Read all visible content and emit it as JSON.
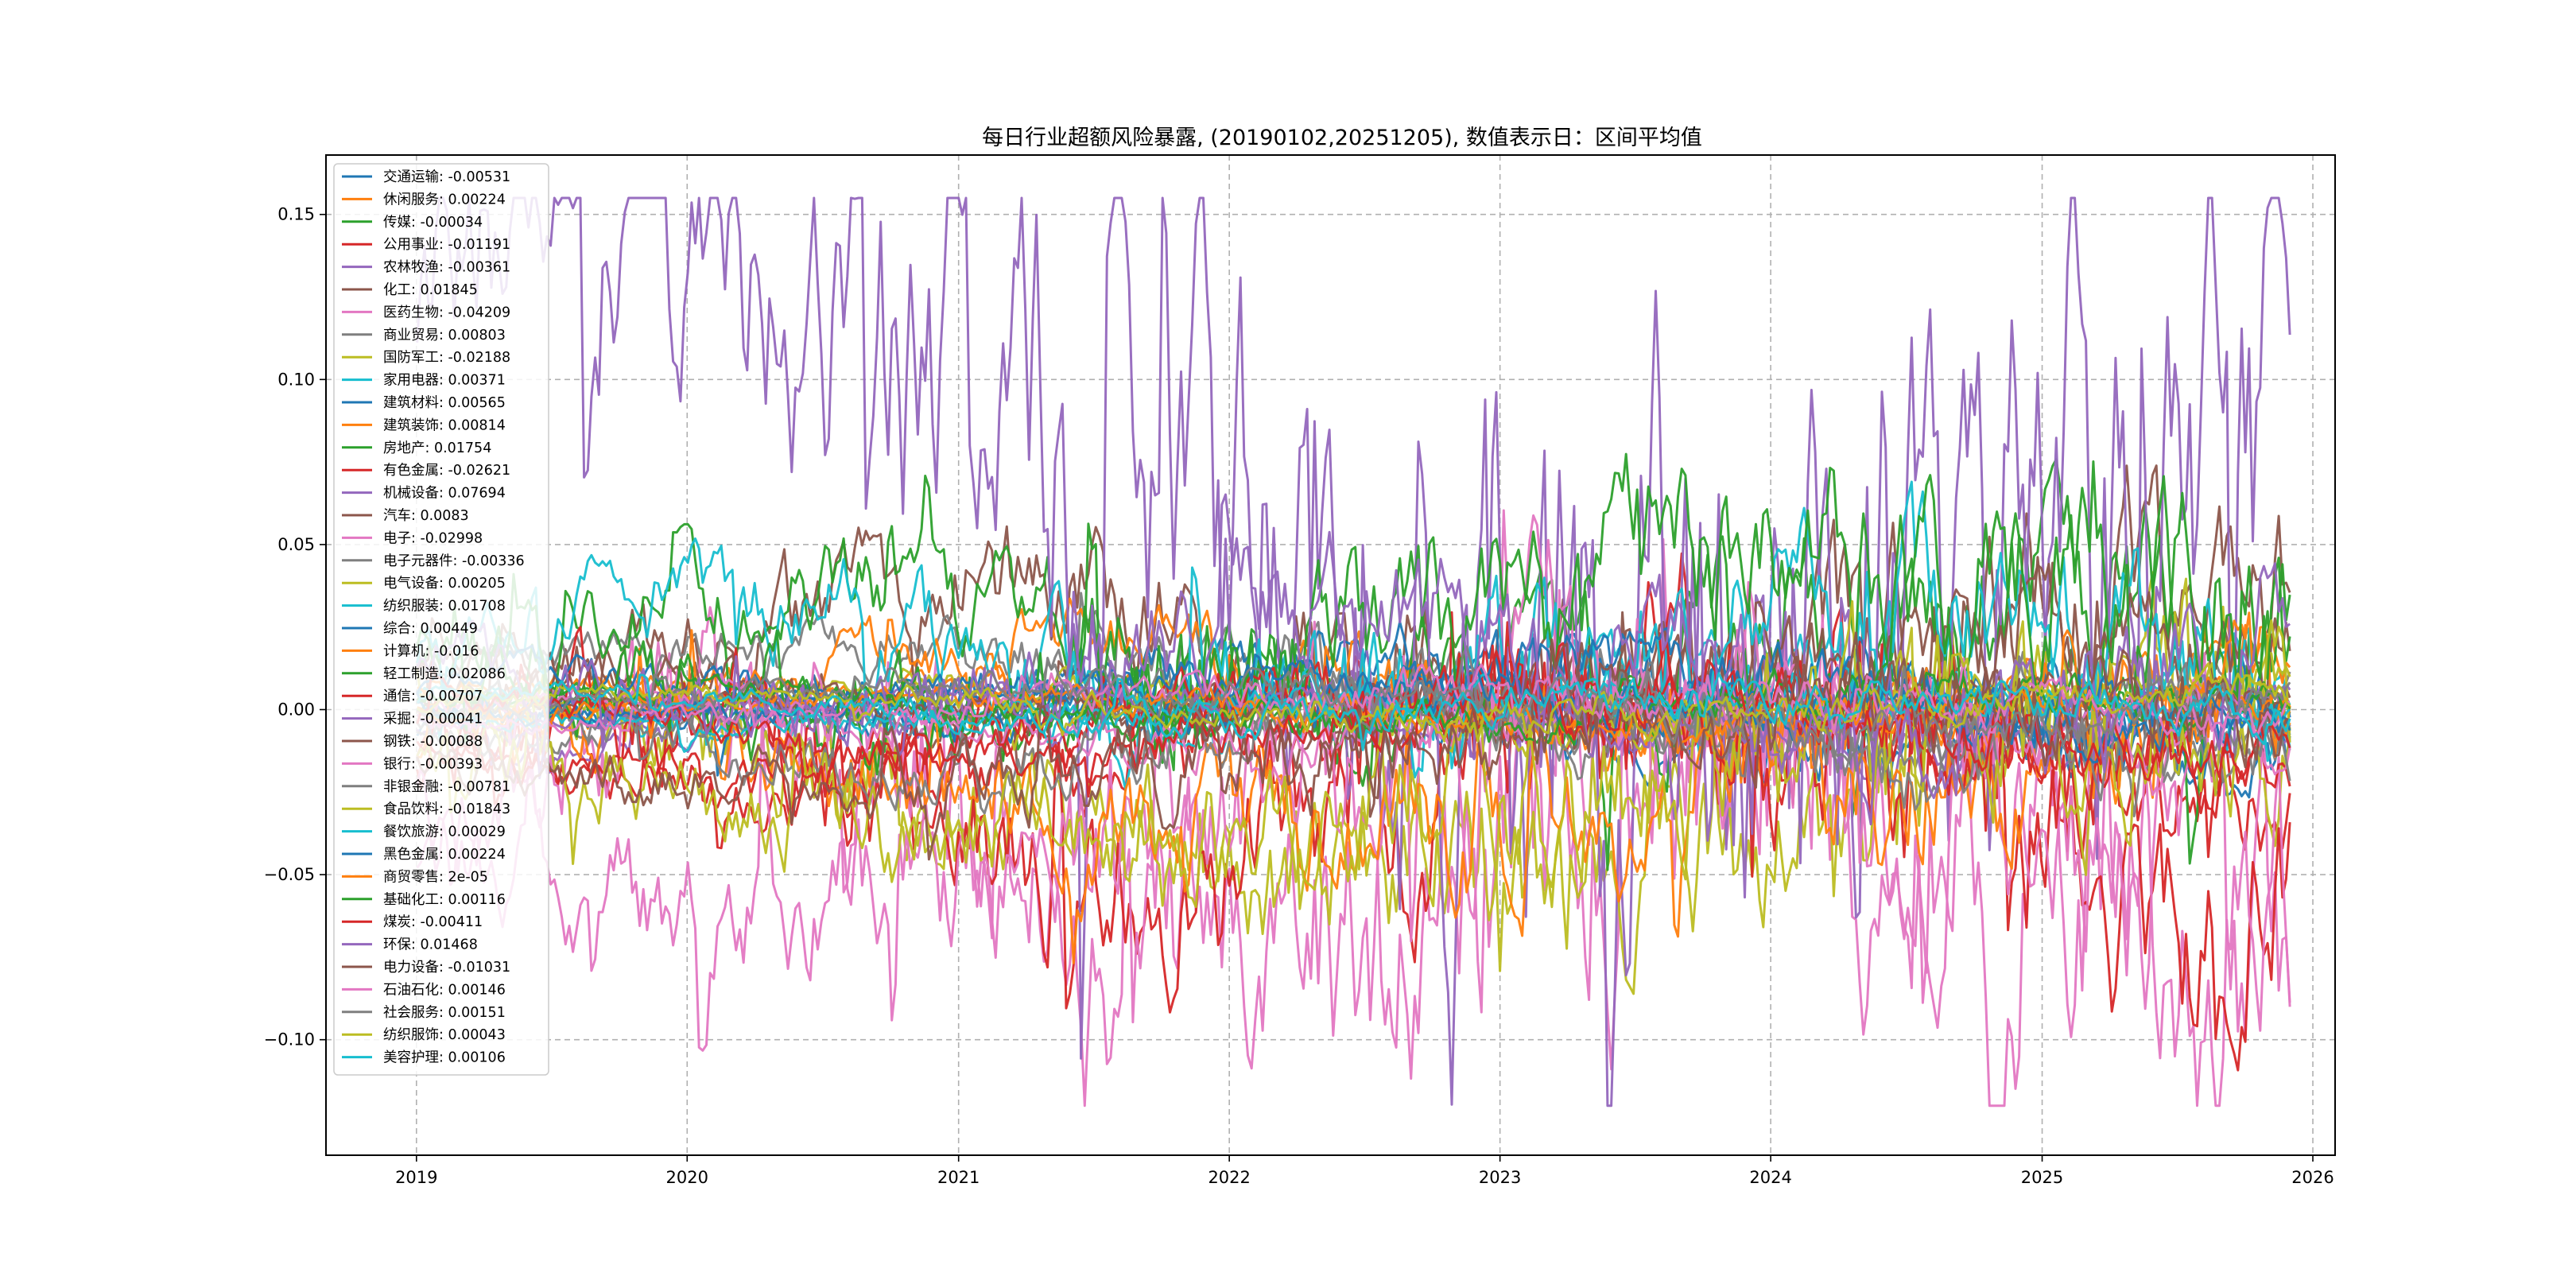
{
  "chart_data": {
    "type": "line",
    "title": "每日行业超额风险暴露, (20190102,20251205), 数值表示日：区间平均值",
    "xlabel": "",
    "ylabel": "",
    "x_start": "2019-01-02",
    "x_end": "2025-12-05",
    "xlim": [
      "2018-09-01",
      "2026-01-31"
    ],
    "ylim": [
      -0.135,
      0.168
    ],
    "x_ticks": [
      "2019",
      "2020",
      "2021",
      "2022",
      "2023",
      "2024",
      "2025",
      "2026"
    ],
    "y_ticks": [
      0.15,
      0.1,
      0.05,
      0.0,
      -0.05,
      -0.1
    ],
    "y_tick_labels": [
      "0.15",
      "0.10",
      "0.05",
      "0.00",
      "−0.05",
      "−0.10"
    ],
    "grid": true,
    "legend_position": "upper-left",
    "series": [
      {
        "name": "交通运输",
        "label": "交通运输: -0.00531",
        "mean": -0.00531,
        "color": "#1f77b4"
      },
      {
        "name": "休闲服务",
        "label": "休闲服务: 0.00224",
        "mean": 0.00224,
        "color": "#ff7f0e"
      },
      {
        "name": "传媒",
        "label": "传媒: -0.00034",
        "mean": -0.00034,
        "color": "#2ca02c"
      },
      {
        "name": "公用事业",
        "label": "公用事业: -0.01191",
        "mean": -0.01191,
        "color": "#d62728"
      },
      {
        "name": "农林牧渔",
        "label": "农林牧渔: -0.00361",
        "mean": -0.00361,
        "color": "#9467bd"
      },
      {
        "name": "化工",
        "label": "化工: 0.01845",
        "mean": 0.01845,
        "color": "#8c564b"
      },
      {
        "name": "医药生物",
        "label": "医药生物: -0.04209",
        "mean": -0.04209,
        "color": "#e377c2"
      },
      {
        "name": "商业贸易",
        "label": "商业贸易: 0.00803",
        "mean": 0.00803,
        "color": "#7f7f7f"
      },
      {
        "name": "国防军工",
        "label": "国防军工: -0.02188",
        "mean": -0.02188,
        "color": "#bcbd22"
      },
      {
        "name": "家用电器",
        "label": "家用电器: 0.00371",
        "mean": 0.00371,
        "color": "#17becf"
      },
      {
        "name": "建筑材料",
        "label": "建筑材料: 0.00565",
        "mean": 0.00565,
        "color": "#1f77b4"
      },
      {
        "name": "建筑装饰",
        "label": "建筑装饰: 0.00814",
        "mean": 0.00814,
        "color": "#ff7f0e"
      },
      {
        "name": "房地产",
        "label": "房地产: 0.01754",
        "mean": 0.01754,
        "color": "#2ca02c"
      },
      {
        "name": "有色金属",
        "label": "有色金属: -0.02621",
        "mean": -0.02621,
        "color": "#d62728"
      },
      {
        "name": "机械设备",
        "label": "机械设备: 0.07694",
        "mean": 0.07694,
        "color": "#9467bd"
      },
      {
        "name": "汽车",
        "label": "汽车: 0.0083",
        "mean": 0.0083,
        "color": "#8c564b"
      },
      {
        "name": "电子",
        "label": "电子: -0.02998",
        "mean": -0.02998,
        "color": "#e377c2"
      },
      {
        "name": "电子元器件",
        "label": "电子元器件: -0.00336",
        "mean": -0.00336,
        "color": "#7f7f7f"
      },
      {
        "name": "电气设备",
        "label": "电气设备: 0.00205",
        "mean": 0.00205,
        "color": "#bcbd22"
      },
      {
        "name": "纺织服装",
        "label": "纺织服装: 0.01708",
        "mean": 0.01708,
        "color": "#17becf"
      },
      {
        "name": "综合",
        "label": "综合: 0.00449",
        "mean": 0.00449,
        "color": "#1f77b4"
      },
      {
        "name": "计算机",
        "label": "计算机: -0.016",
        "mean": -0.016,
        "color": "#ff7f0e"
      },
      {
        "name": "轻工制造",
        "label": "轻工制造: 0.02086",
        "mean": 0.02086,
        "color": "#2ca02c"
      },
      {
        "name": "通信",
        "label": "通信: -0.00707",
        "mean": -0.00707,
        "color": "#d62728"
      },
      {
        "name": "采掘",
        "label": "采掘: -0.00041",
        "mean": -0.00041,
        "color": "#9467bd"
      },
      {
        "name": "钢铁",
        "label": "钢铁: -0.00088",
        "mean": -0.00088,
        "color": "#8c564b"
      },
      {
        "name": "银行",
        "label": "银行: -0.00393",
        "mean": -0.00393,
        "color": "#e377c2"
      },
      {
        "name": "非银金融",
        "label": "非银金融: -0.00781",
        "mean": -0.00781,
        "color": "#7f7f7f"
      },
      {
        "name": "食品饮料",
        "label": "食品饮料: -0.01843",
        "mean": -0.01843,
        "color": "#bcbd22"
      },
      {
        "name": "餐饮旅游",
        "label": "餐饮旅游: 0.00029",
        "mean": 0.00029,
        "color": "#17becf"
      },
      {
        "name": "黑色金属",
        "label": "黑色金属: 0.00224",
        "mean": 0.00224,
        "color": "#1f77b4"
      },
      {
        "name": "商贸零售",
        "label": "商贸零售: 2e-05",
        "mean": 2e-05,
        "color": "#ff7f0e"
      },
      {
        "name": "基础化工",
        "label": "基础化工: 0.00116",
        "mean": 0.00116,
        "color": "#2ca02c"
      },
      {
        "name": "煤炭",
        "label": "煤炭: -0.00411",
        "mean": -0.00411,
        "color": "#d62728"
      },
      {
        "name": "环保",
        "label": "环保: 0.01468",
        "mean": 0.01468,
        "color": "#9467bd"
      },
      {
        "name": "电力设备",
        "label": "电力设备: -0.01031",
        "mean": -0.01031,
        "color": "#8c564b"
      },
      {
        "name": "石油石化",
        "label": "石油石化: 0.00146",
        "mean": 0.00146,
        "color": "#e377c2"
      },
      {
        "name": "社会服务",
        "label": "社会服务: 0.00151",
        "mean": 0.00151,
        "color": "#7f7f7f"
      },
      {
        "name": "纺织服饰",
        "label": "纺织服饰: 0.00043",
        "mean": 0.00043,
        "color": "#bcbd22"
      },
      {
        "name": "美容护理",
        "label": "美容护理: 0.00106",
        "mean": 0.00106,
        "color": "#17becf"
      }
    ]
  }
}
